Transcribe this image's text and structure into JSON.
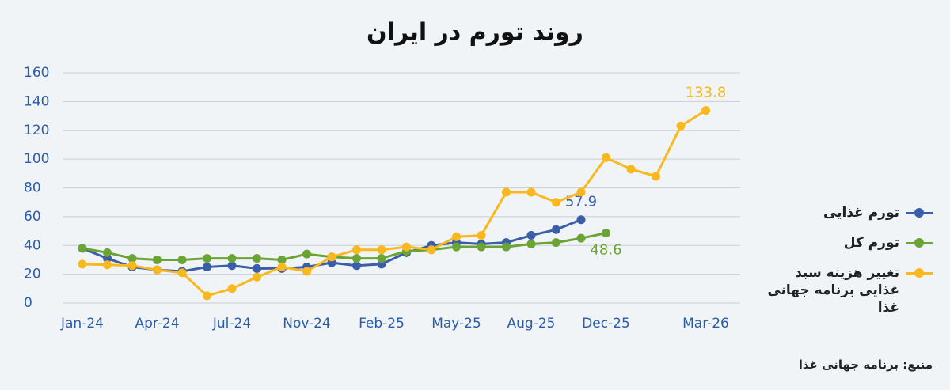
{
  "chart_data": {
    "type": "line",
    "title": "روند تورم در ایران",
    "categories": [
      "Jan-24",
      null,
      null,
      "Apr-24",
      null,
      null,
      "Jul-24",
      null,
      null,
      "Nov-24",
      null,
      null,
      "Feb-25",
      null,
      null,
      "May-25",
      null,
      null,
      "Aug-25",
      null,
      null,
      "Dec-25",
      null,
      null,
      null,
      "Mar-26"
    ],
    "series": [
      {
        "name": "تورم غذایی",
        "color": "#3b5ea8",
        "values": [
          38,
          31,
          25,
          23,
          22,
          25,
          26,
          24,
          24,
          25,
          28,
          26,
          27,
          35,
          40,
          42,
          41,
          42,
          47,
          51,
          57.9,
          null,
          null,
          null,
          null,
          null
        ]
      },
      {
        "name": "تورم کل",
        "color": "#6aa434",
        "values": [
          38,
          35,
          31,
          30,
          30,
          31,
          31,
          31,
          30,
          34,
          32,
          31,
          31,
          36,
          37,
          39,
          39,
          39,
          41,
          42,
          45,
          48.6,
          null,
          null,
          null,
          null
        ]
      },
      {
        "name": "تغییر هزینه سبد غذایی برنامه جهانی غذا",
        "color": "#f8b81e",
        "values": [
          27,
          26.5,
          26,
          23,
          21,
          5,
          10,
          18,
          25,
          22,
          32,
          37,
          37,
          39,
          37,
          46,
          47,
          77,
          77,
          70,
          77,
          101,
          93,
          88,
          123,
          133.8
        ]
      }
    ],
    "ylim": [
      0,
      160
    ],
    "yticks": [
      0,
      20,
      40,
      60,
      80,
      100,
      120,
      140,
      160
    ],
    "grid": true,
    "source": "منبع: برنامه جهانی غذا"
  }
}
